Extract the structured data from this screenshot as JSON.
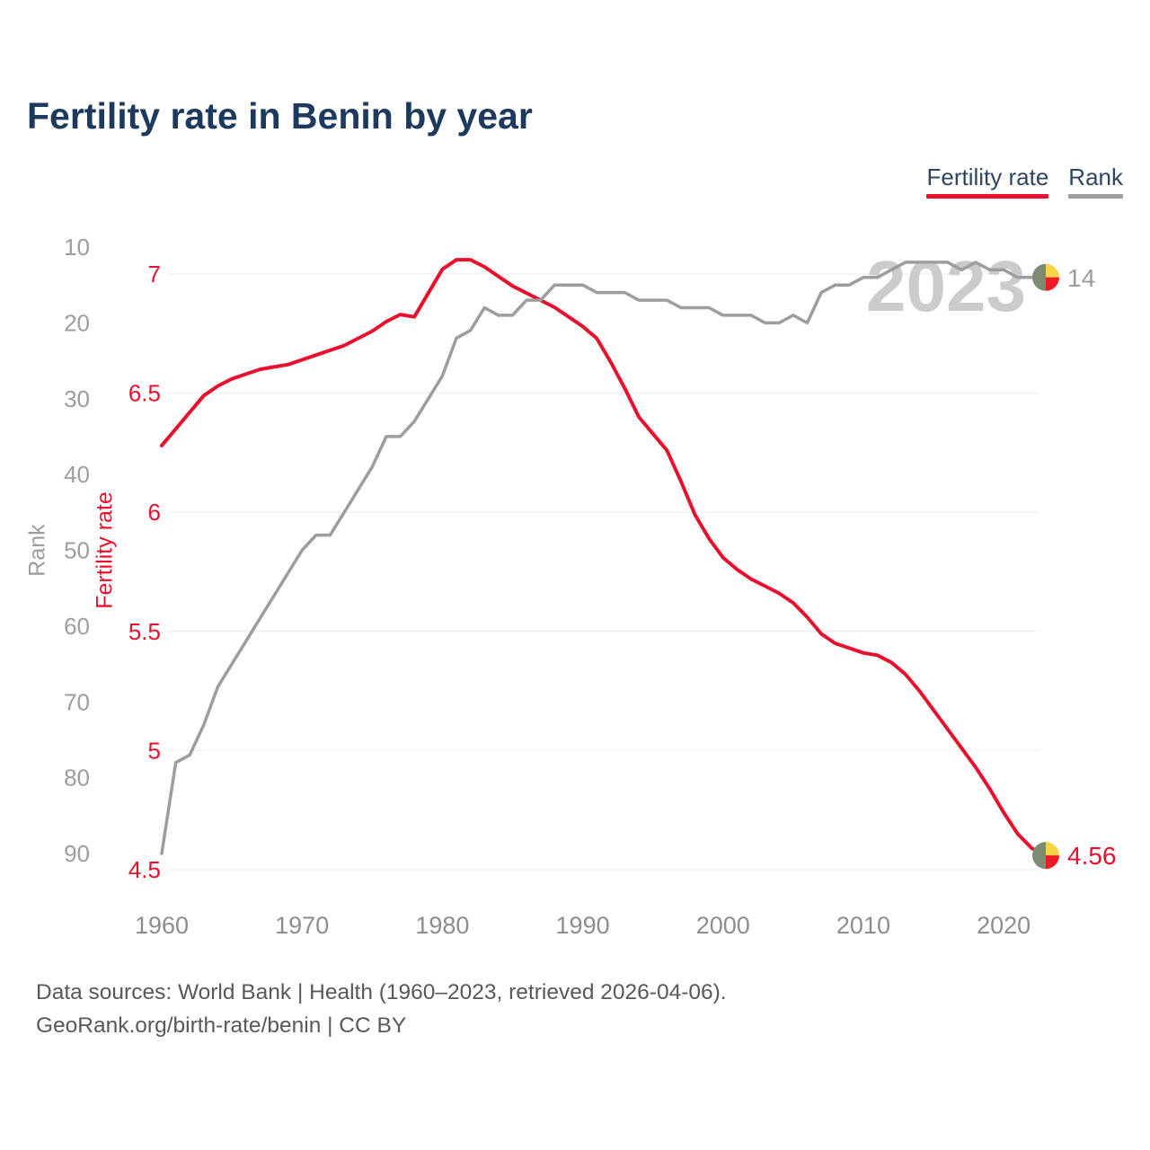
{
  "page": {
    "title": "Fertility rate in Benin by year",
    "footer_line1": "Data sources: World Bank | Health (1960–2023, retrieved 2026-04-06).",
    "footer_line2": "GeoRank.org/birth-rate/benin | CC BY"
  },
  "legend": {
    "items": [
      {
        "label": "Fertility rate",
        "color": "#e8112d"
      },
      {
        "label": "Rank",
        "color": "#9d9d9d"
      }
    ]
  },
  "chart_data": {
    "type": "line",
    "title": "Fertility rate in Benin by year",
    "watermark": "2023",
    "x_label": "",
    "x_ticks": [
      1960,
      1970,
      1980,
      1990,
      2000,
      2010,
      2020
    ],
    "x": [
      1960,
      1961,
      1962,
      1963,
      1964,
      1965,
      1966,
      1967,
      1968,
      1969,
      1970,
      1971,
      1972,
      1973,
      1974,
      1975,
      1976,
      1977,
      1978,
      1979,
      1980,
      1981,
      1982,
      1983,
      1984,
      1985,
      1986,
      1987,
      1988,
      1989,
      1990,
      1991,
      1992,
      1993,
      1994,
      1995,
      1996,
      1997,
      1998,
      1999,
      2000,
      2001,
      2002,
      2003,
      2004,
      2005,
      2006,
      2007,
      2008,
      2009,
      2010,
      2011,
      2012,
      2013,
      2014,
      2015,
      2016,
      2017,
      2018,
      2019,
      2020,
      2021,
      2022,
      2023
    ],
    "series": [
      {
        "name": "Fertility rate",
        "axis": "fertility",
        "color": "#e8112d",
        "end_label": "4.56",
        "values": [
          6.28,
          6.35,
          6.42,
          6.49,
          6.53,
          6.56,
          6.58,
          6.6,
          6.61,
          6.62,
          6.64,
          6.66,
          6.68,
          6.7,
          6.73,
          6.76,
          6.8,
          6.83,
          6.82,
          6.92,
          7.02,
          7.06,
          7.06,
          7.03,
          6.99,
          6.95,
          6.92,
          6.89,
          6.86,
          6.82,
          6.78,
          6.73,
          6.63,
          6.52,
          6.4,
          6.33,
          6.26,
          6.13,
          5.99,
          5.89,
          5.81,
          5.76,
          5.72,
          5.69,
          5.66,
          5.62,
          5.56,
          5.49,
          5.45,
          5.43,
          5.41,
          5.4,
          5.37,
          5.32,
          5.25,
          5.17,
          5.09,
          5.01,
          4.93,
          4.84,
          4.74,
          4.65,
          4.59,
          4.56
        ]
      },
      {
        "name": "Rank",
        "axis": "rank",
        "color": "#9d9d9d",
        "end_label": "14",
        "values": [
          90,
          78,
          77,
          73,
          68,
          65,
          62,
          59,
          56,
          53,
          50,
          48,
          48,
          45,
          42,
          39,
          35,
          35,
          33,
          30,
          27,
          22,
          21,
          18,
          19,
          19,
          17,
          17,
          15,
          15,
          15,
          16,
          16,
          16,
          17,
          17,
          17,
          18,
          18,
          18,
          19,
          19,
          19,
          20,
          20,
          19,
          20,
          16,
          15,
          15,
          14,
          14,
          13,
          12,
          12,
          12,
          12,
          13,
          12,
          13,
          13,
          14,
          14,
          14
        ]
      }
    ],
    "axes": {
      "fertility": {
        "label": "Fertility rate",
        "color": "#e8112d",
        "range": [
          4.5,
          7
        ],
        "ticks": [
          7,
          6.5,
          6,
          5.5,
          5,
          4.5
        ],
        "tick_labels": [
          "7",
          "6.5",
          "6",
          "5.5",
          "5",
          "4.5"
        ],
        "grid": true
      },
      "rank": {
        "label": "Rank",
        "color": "#9d9d9d",
        "range": [
          10,
          90
        ],
        "inverted": true,
        "ticks": [
          10,
          20,
          30,
          40,
          50,
          60,
          70,
          80,
          90
        ],
        "grid": false
      }
    },
    "styles": {
      "grid_color": "#ebebeb",
      "x_tick_color": "#8d8d8d",
      "marker_flag_colors": {
        "left": "#7d8a74",
        "top_right": "#fbd348",
        "bottom_right": "#ee1b24"
      }
    }
  }
}
